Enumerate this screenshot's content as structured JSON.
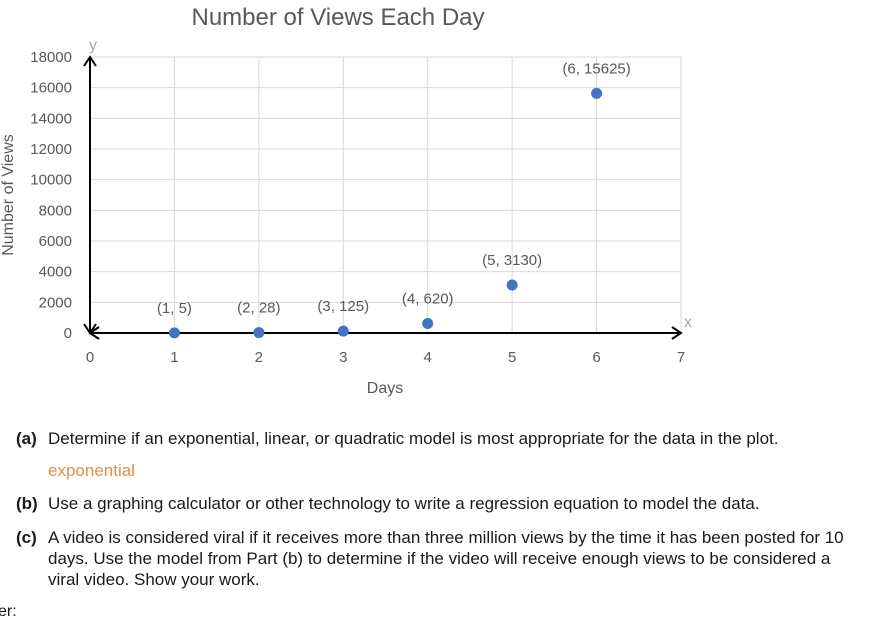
{
  "chart_data": {
    "type": "scatter",
    "title": "Number of Views Each Day",
    "xlabel": "Days",
    "ylabel": "Number of Views",
    "x_axis_letter": "x",
    "y_axis_letter": "y",
    "xlim": [
      0,
      7
    ],
    "ylim": [
      0,
      18000
    ],
    "x_ticks": [
      0,
      1,
      2,
      3,
      4,
      5,
      6,
      7
    ],
    "y_ticks": [
      0,
      2000,
      4000,
      6000,
      8000,
      10000,
      12000,
      14000,
      16000,
      18000
    ],
    "grid": true,
    "point_color": "#4472c4",
    "points": [
      {
        "x": 1,
        "y": 5,
        "label": "(1, 5)"
      },
      {
        "x": 2,
        "y": 28,
        "label": "(2, 28)"
      },
      {
        "x": 3,
        "y": 125,
        "label": "(3, 125)"
      },
      {
        "x": 4,
        "y": 620,
        "label": "(4, 620)"
      },
      {
        "x": 5,
        "y": 3130,
        "label": "(5, 3130)"
      },
      {
        "x": 6,
        "y": 15625,
        "label": "(6, 15625)"
      }
    ]
  },
  "questions": {
    "a": {
      "label": "(a)",
      "text": "Determine if an exponential, linear, or quadratic model is most appropriate for the data in the plot.",
      "answer": "exponential"
    },
    "b": {
      "label": "(b)",
      "text": "Use a graphing calculator or other technology to write a regression equation to model the data."
    },
    "c": {
      "label": "(c)",
      "text": "A video is considered viral if it receives more than three million views by the time it has been posted for 10 days. Use the model from Part (b) to determine if the video will receive enough views to be considered a viral video. Show your work."
    }
  },
  "answer_prompt": "er:",
  "colors": {
    "answer": "#e0913f",
    "text": "#1a1a1a",
    "chart_text": "#595959",
    "grid": "#d9d9d9"
  }
}
